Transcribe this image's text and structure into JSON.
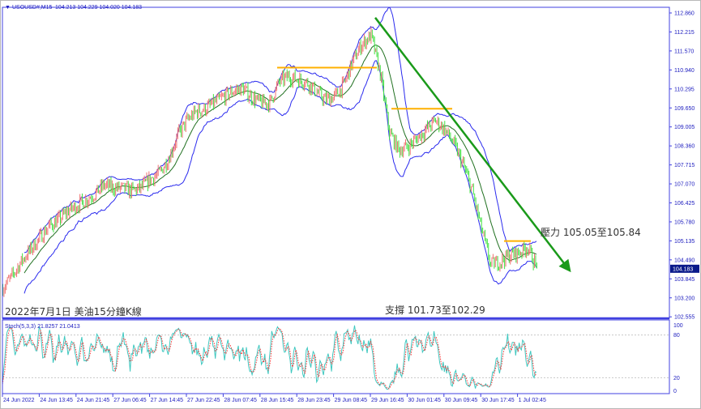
{
  "header": {
    "symbol": "USOUSD#,M15",
    "ohlc": "104.213 104.229 104.020 104.183"
  },
  "colors": {
    "bull": "#f07070",
    "bear": "#40e040",
    "bands": "#2a2aee",
    "ma": "#207020",
    "trend": "#1a9a1a",
    "level": "#ffb000",
    "stoch_main": "#40c8c0",
    "stoch_signal": "#ff3030",
    "axis": "#4040e0"
  },
  "chart_data": [
    {
      "type": "candlestick",
      "title": "2022年7月1日 美油15分鐘K線",
      "timeframe": "M15",
      "approx_close_every_2h": [
        103.5,
        103.9,
        104.4,
        104.8,
        105.2,
        105.6,
        105.8,
        106.1,
        106.3,
        106.5,
        106.7,
        107.0,
        106.9,
        106.9,
        106.8,
        106.9,
        107.2,
        107.4,
        107.9,
        108.7,
        109.2,
        109.5,
        109.6,
        109.8,
        110.0,
        110.2,
        110.3,
        110.0,
        109.8,
        109.8,
        110.5,
        110.7,
        110.6,
        110.5,
        110.2,
        109.9,
        110.0,
        110.4,
        111.2,
        111.8,
        112.1,
        110.8,
        108.8,
        108.2,
        108.3,
        108.6,
        108.9,
        109.2,
        108.9,
        108.4,
        107.7,
        106.8,
        105.5,
        104.3,
        104.4,
        104.6,
        104.7,
        104.9,
        104.18
      ],
      "ylim": [
        102.4,
        113.0
      ],
      "y_ticks": [
        "112.860",
        "112.215",
        "111.570",
        "110.940",
        "110.295",
        "109.650",
        "109.005",
        "108.360",
        "107.715",
        "107.070",
        "106.425",
        "105.780",
        "105.135",
        "104.490",
        "103.845",
        "103.200",
        "102.555"
      ],
      "current_price": "104.183",
      "x_ticks": [
        "24 Jun 2022",
        "24 Jun 13:45",
        "24 Jun 21:45",
        "27 Jun 06:45",
        "27 Jun 14:45",
        "27 Jun 22:45",
        "28 Jun 07:45",
        "28 Jun 15:45",
        "28 Jun 23:45",
        "29 Jun 08:45",
        "29 Jun 16:45",
        "30 Jun 01:45",
        "30 Jun 09:45",
        "30 Jun 17:45",
        "1 Jul 02:45"
      ],
      "indicators": [
        "Bollinger Bands",
        "Moving Average"
      ],
      "horizontal_levels": [
        111.0,
        109.6,
        105.1
      ],
      "trendline": {
        "from_price": 112.7,
        "to_price": 104.2,
        "direction": "down"
      },
      "annotations": {
        "resistance": "壓力 105.05至105.84",
        "support": "支撐 101.73至102.29"
      }
    },
    {
      "type": "line",
      "label": "Stoch(5,3,3) 21.8257 21.0413",
      "ylim": [
        0,
        100
      ],
      "y_ticks": [
        "100",
        "80",
        "20",
        "0"
      ],
      "levels": [
        80,
        20
      ]
    }
  ]
}
